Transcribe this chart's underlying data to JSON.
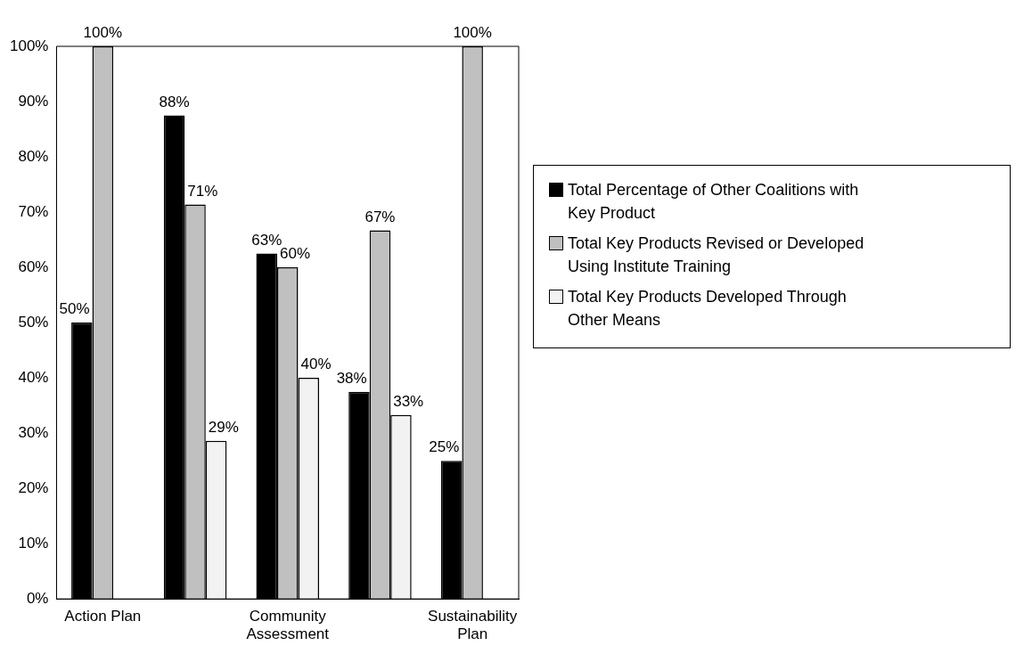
{
  "chart_data": {
    "type": "bar",
    "categories": [
      "Action Plan",
      null,
      "Community Assessment",
      null,
      "Sustainability Plan"
    ],
    "series": [
      {
        "name": "Total Percentage of Other Coalitions with Key Product",
        "color": "#000000",
        "values": [
          50,
          87.5,
          62.5,
          37.5,
          25
        ],
        "value_labels": [
          "50%",
          "88%",
          "63%",
          "38%",
          "25%"
        ]
      },
      {
        "name": "Total Key Products Revised or Developed Using Institute Training",
        "color": "#c0c0c0",
        "values": [
          100,
          71.4,
          60,
          66.7,
          100
        ],
        "value_labels": [
          "100%",
          "71%",
          "60%",
          "67%",
          "100%"
        ]
      },
      {
        "name": "Total Key Products Developed Through Other Means",
        "color": "#f2f2f2",
        "values": [
          null,
          28.6,
          40,
          33.3,
          null
        ],
        "value_labels": [
          null,
          "29%",
          "40%",
          "33%",
          null
        ]
      }
    ],
    "ylim": [
      0,
      100
    ],
    "yticks": [
      {
        "value": 0,
        "label": "0%"
      },
      {
        "value": 10,
        "label": "10%"
      },
      {
        "value": 20,
        "label": "20%"
      },
      {
        "value": 30,
        "label": "30%"
      },
      {
        "value": 40,
        "label": "40%"
      },
      {
        "value": 50,
        "label": "50%"
      },
      {
        "value": 60,
        "label": "60%"
      },
      {
        "value": 70,
        "label": "70%"
      },
      {
        "value": 80,
        "label": "80%"
      },
      {
        "value": 90,
        "label": "90%"
      },
      {
        "value": 100,
        "label": "100%"
      }
    ],
    "grid": false,
    "legend": "right"
  }
}
